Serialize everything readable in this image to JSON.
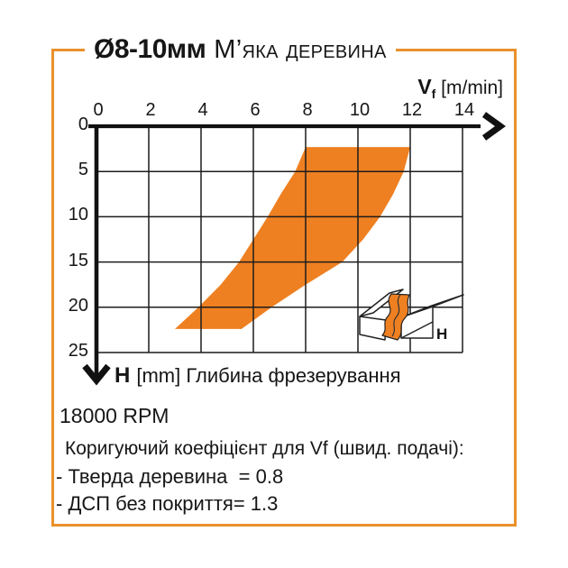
{
  "card": {
    "title": {
      "bold": "Ø8-10мм",
      "material": "М’яка деревина"
    }
  },
  "chart": {
    "vf": {
      "symbol": "V",
      "sub": "f",
      "unit": " [m/min]"
    },
    "h": {
      "symbol": "H",
      "rest": "[mm] Глибина фрезерування"
    },
    "icon_label": "H"
  },
  "chart_data": {
    "type": "area",
    "title": "Ø8-10мм М’яка деревина",
    "xlabel": "Vf [m/min]",
    "ylabel": "H [mm] Глибина фрезерування",
    "xlim": [
      0,
      14
    ],
    "ylim": [
      0,
      25
    ],
    "y_inverted": true,
    "grid": true,
    "x_ticks": [
      0,
      2,
      4,
      6,
      8,
      10,
      12,
      14
    ],
    "y_ticks": [
      0,
      5,
      10,
      15,
      20,
      25
    ],
    "band_color": "#EE8021",
    "band_polygon": [
      [
        8.0,
        2.3
      ],
      [
        7.6,
        5
      ],
      [
        7.05,
        7.5
      ],
      [
        6.55,
        10
      ],
      [
        6.0,
        12.5
      ],
      [
        5.45,
        15
      ],
      [
        4.75,
        17.5
      ],
      [
        3.9,
        20
      ],
      [
        3.0,
        22.4
      ],
      [
        5.55,
        22.4
      ],
      [
        6.7,
        20
      ],
      [
        8.0,
        17.5
      ],
      [
        9.4,
        15
      ],
      [
        10.2,
        12.5
      ],
      [
        10.85,
        10
      ],
      [
        11.35,
        7.5
      ],
      [
        11.75,
        5
      ],
      [
        12.0,
        2.3
      ]
    ]
  },
  "notes": {
    "rpm": "18000 RPM",
    "coef_header": "Коригуючий коефіцієнт для Vf (швид. подачі):",
    "coef_lines": [
      "- Тверда деревина  = 0.8",
      "- ДСП без покриття= 1.3"
    ]
  },
  "colors": {
    "accent_band": "#EE8021",
    "card_border": "#E9912C",
    "axis": "#161616"
  }
}
